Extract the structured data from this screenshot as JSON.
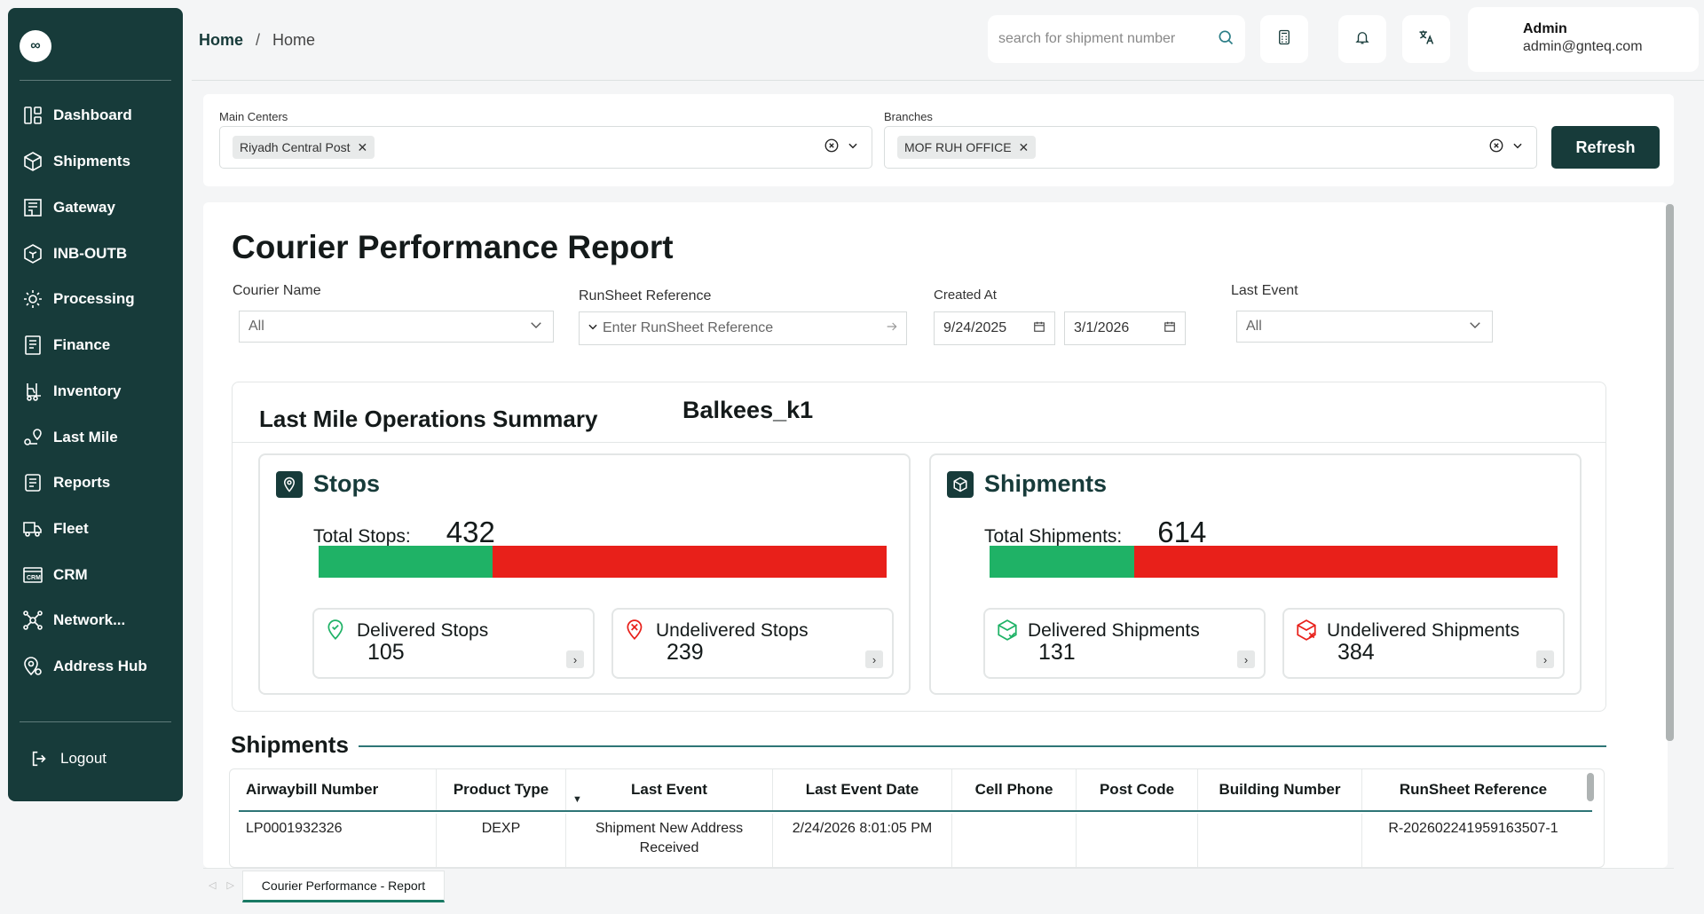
{
  "app": {
    "logo_symbol": "∞"
  },
  "sidebar": {
    "items": [
      {
        "label": "Dashboard",
        "icon": "dashboard-icon"
      },
      {
        "label": "Shipments",
        "icon": "package-icon"
      },
      {
        "label": "Gateway",
        "icon": "building-icon"
      },
      {
        "label": "INB-OUTB",
        "icon": "box-icon"
      },
      {
        "label": "Processing",
        "icon": "gear-icon"
      },
      {
        "label": "Finance",
        "icon": "invoice-icon"
      },
      {
        "label": "Inventory",
        "icon": "forklift-icon"
      },
      {
        "label": "Last Mile",
        "icon": "route-icon"
      },
      {
        "label": "Reports",
        "icon": "report-icon"
      },
      {
        "label": "Fleet",
        "icon": "truck-icon"
      },
      {
        "label": "CRM",
        "icon": "crm-icon"
      },
      {
        "label": "Network...",
        "icon": "network-icon"
      },
      {
        "label": "Address Hub",
        "icon": "address-icon"
      }
    ],
    "logout_label": "Logout"
  },
  "header": {
    "breadcrumb": [
      "Home",
      "Home"
    ],
    "breadcrumb_sep": "/",
    "search_placeholder": "search for shipment number",
    "user_name": "Admin",
    "user_email": "admin@gnteq.com"
  },
  "filters": {
    "main_centers_label": "Main Centers",
    "main_centers_chip": "Riyadh Central Post",
    "branches_label": "Branches",
    "branches_chip": "MOF RUH OFFICE",
    "refresh_label": "Refresh"
  },
  "report": {
    "title": "Courier Performance Report",
    "courier_name_label": "Courier Name",
    "courier_name_value": "All",
    "runsheet_label": "RunSheet Reference",
    "runsheet_placeholder": "Enter RunSheet Reference",
    "created_at_label": "Created At",
    "created_from": "9/24/2025",
    "created_to": "3/1/2026",
    "last_event_label": "Last Event",
    "last_event_value": "All"
  },
  "summary": {
    "title": "Last Mile Operations Summary",
    "courier": "Balkees_k1",
    "stops": {
      "title": "Stops",
      "total_label": "Total Stops:",
      "total": "432",
      "delivered_label": "Delivered Stops",
      "delivered": "105",
      "undelivered_label": "Undelivered Stops",
      "undelivered": "239",
      "delivered_fraction": 0.306
    },
    "shipments": {
      "title": "Shipments",
      "total_label": "Total Shipments:",
      "total": "614",
      "delivered_label": "Delivered Shipments",
      "delivered": "131",
      "undelivered_label": "Undelivered Shipments",
      "undelivered": "384",
      "delivered_fraction": 0.254
    },
    "colors": {
      "delivered": "#1fb266",
      "undelivered": "#e8201a",
      "brand": "#173b3a"
    }
  },
  "shipments_table": {
    "heading": "Shipments",
    "columns": [
      "Airwaybill Number",
      "Product Type",
      "Last Event",
      "Last Event Date",
      "Cell Phone",
      "Post Code",
      "Building Number",
      "RunSheet Reference"
    ],
    "rows": [
      [
        "LP0001932326",
        "DEXP",
        "Shipment New Address Received",
        "2/24/2026 8:01:05 PM",
        "",
        "",
        "",
        "R-202602241959163507-1"
      ]
    ]
  },
  "tabs": {
    "active": "Courier Performance - Report"
  }
}
